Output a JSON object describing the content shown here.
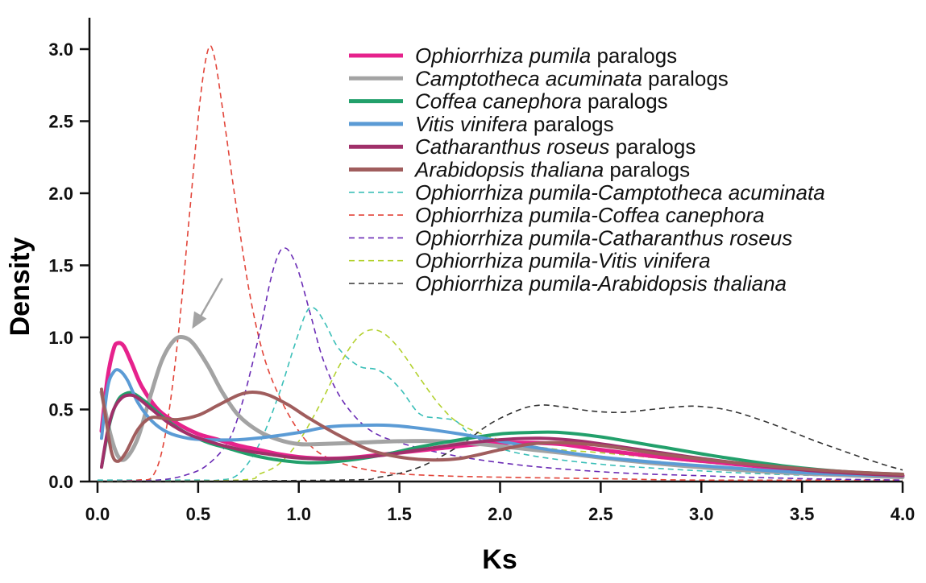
{
  "chart_data": {
    "type": "line",
    "xlabel": "Ks",
    "ylabel": "Density",
    "xlim": [
      0,
      4
    ],
    "ylim": [
      0,
      3.1
    ],
    "x_ticks": [
      "0.0",
      "0.5",
      "1.0",
      "1.5",
      "2.0",
      "2.5",
      "3.0",
      "3.5",
      "4.0"
    ],
    "y_ticks": [
      "0.0",
      "0.5",
      "1.0",
      "1.5",
      "2.0",
      "2.5",
      "3.0"
    ],
    "legend_position": "top-right",
    "annotation": {
      "type": "arrow",
      "from": [
        0.62,
        1.41
      ],
      "to": [
        0.47,
        1.06
      ]
    },
    "series": [
      {
        "name_italic": "Ophiorrhiza pumila",
        "name_suffix": " paralogs",
        "style": "solid",
        "width": 5,
        "color": "#e6228c",
        "points": [
          [
            0.02,
            0.35
          ],
          [
            0.05,
            0.72
          ],
          [
            0.08,
            0.92
          ],
          [
            0.1,
            0.96
          ],
          [
            0.13,
            0.94
          ],
          [
            0.17,
            0.82
          ],
          [
            0.22,
            0.66
          ],
          [
            0.3,
            0.5
          ],
          [
            0.4,
            0.4
          ],
          [
            0.5,
            0.33
          ],
          [
            0.6,
            0.29
          ],
          [
            0.7,
            0.25
          ],
          [
            0.8,
            0.22
          ],
          [
            0.9,
            0.19
          ],
          [
            1.0,
            0.17
          ],
          [
            1.1,
            0.16
          ],
          [
            1.2,
            0.16
          ],
          [
            1.3,
            0.17
          ],
          [
            1.5,
            0.2
          ],
          [
            1.7,
            0.23
          ],
          [
            1.9,
            0.26
          ],
          [
            2.1,
            0.27
          ],
          [
            2.3,
            0.26
          ],
          [
            2.5,
            0.22
          ],
          [
            2.8,
            0.17
          ],
          [
            3.1,
            0.13
          ],
          [
            3.4,
            0.09
          ],
          [
            3.7,
            0.06
          ],
          [
            4.0,
            0.04
          ]
        ]
      },
      {
        "name_italic": "Camptotheca acuminata",
        "name_suffix": " paralogs",
        "style": "solid",
        "width": 5,
        "color": "#a3a3a3",
        "points": [
          [
            0.02,
            0.62
          ],
          [
            0.06,
            0.35
          ],
          [
            0.1,
            0.18
          ],
          [
            0.14,
            0.16
          ],
          [
            0.2,
            0.3
          ],
          [
            0.26,
            0.58
          ],
          [
            0.32,
            0.84
          ],
          [
            0.38,
            0.98
          ],
          [
            0.43,
            1.0
          ],
          [
            0.48,
            0.95
          ],
          [
            0.55,
            0.8
          ],
          [
            0.62,
            0.62
          ],
          [
            0.7,
            0.46
          ],
          [
            0.8,
            0.35
          ],
          [
            0.9,
            0.29
          ],
          [
            1.0,
            0.26
          ],
          [
            1.1,
            0.26
          ],
          [
            1.3,
            0.27
          ],
          [
            1.5,
            0.28
          ],
          [
            1.7,
            0.28
          ],
          [
            1.9,
            0.26
          ],
          [
            2.1,
            0.23
          ],
          [
            2.3,
            0.2
          ],
          [
            2.6,
            0.15
          ],
          [
            2.9,
            0.11
          ],
          [
            3.2,
            0.08
          ],
          [
            3.6,
            0.05
          ],
          [
            4.0,
            0.03
          ]
        ]
      },
      {
        "name_italic": "Coffea canephora",
        "name_suffix": " paralogs",
        "style": "solid",
        "width": 4,
        "color": "#22a06b",
        "points": [
          [
            0.02,
            0.1
          ],
          [
            0.06,
            0.4
          ],
          [
            0.1,
            0.56
          ],
          [
            0.14,
            0.61
          ],
          [
            0.18,
            0.61
          ],
          [
            0.25,
            0.54
          ],
          [
            0.35,
            0.42
          ],
          [
            0.45,
            0.33
          ],
          [
            0.55,
            0.27
          ],
          [
            0.65,
            0.23
          ],
          [
            0.75,
            0.19
          ],
          [
            0.85,
            0.16
          ],
          [
            0.95,
            0.14
          ],
          [
            1.05,
            0.13
          ],
          [
            1.2,
            0.14
          ],
          [
            1.4,
            0.18
          ],
          [
            1.6,
            0.24
          ],
          [
            1.8,
            0.29
          ],
          [
            2.0,
            0.33
          ],
          [
            2.15,
            0.34
          ],
          [
            2.3,
            0.34
          ],
          [
            2.5,
            0.31
          ],
          [
            2.8,
            0.24
          ],
          [
            3.1,
            0.17
          ],
          [
            3.4,
            0.11
          ],
          [
            3.7,
            0.07
          ],
          [
            4.0,
            0.05
          ]
        ]
      },
      {
        "name_italic": "Vitis vinifera",
        "name_suffix": " paralogs",
        "style": "solid",
        "width": 4,
        "color": "#5b9bd5",
        "points": [
          [
            0.02,
            0.3
          ],
          [
            0.05,
            0.65
          ],
          [
            0.08,
            0.76
          ],
          [
            0.11,
            0.77
          ],
          [
            0.15,
            0.7
          ],
          [
            0.2,
            0.55
          ],
          [
            0.27,
            0.42
          ],
          [
            0.35,
            0.34
          ],
          [
            0.45,
            0.3
          ],
          [
            0.55,
            0.29
          ],
          [
            0.7,
            0.29
          ],
          [
            0.85,
            0.31
          ],
          [
            1.0,
            0.34
          ],
          [
            1.15,
            0.38
          ],
          [
            1.3,
            0.39
          ],
          [
            1.45,
            0.39
          ],
          [
            1.6,
            0.37
          ],
          [
            1.8,
            0.33
          ],
          [
            2.0,
            0.28
          ],
          [
            2.2,
            0.23
          ],
          [
            2.5,
            0.17
          ],
          [
            2.8,
            0.13
          ],
          [
            3.1,
            0.1
          ],
          [
            3.4,
            0.07
          ],
          [
            3.7,
            0.05
          ],
          [
            4.0,
            0.04
          ]
        ]
      },
      {
        "name_italic": "Catharanthus roseus",
        "name_suffix": " paralogs",
        "style": "solid",
        "width": 4,
        "color": "#a0306a",
        "points": [
          [
            0.02,
            0.1
          ],
          [
            0.05,
            0.35
          ],
          [
            0.08,
            0.5
          ],
          [
            0.12,
            0.58
          ],
          [
            0.16,
            0.6
          ],
          [
            0.2,
            0.58
          ],
          [
            0.27,
            0.5
          ],
          [
            0.35,
            0.41
          ],
          [
            0.45,
            0.33
          ],
          [
            0.55,
            0.28
          ],
          [
            0.65,
            0.24
          ],
          [
            0.75,
            0.21
          ],
          [
            0.85,
            0.19
          ],
          [
            0.95,
            0.17
          ],
          [
            1.05,
            0.16
          ],
          [
            1.2,
            0.16
          ],
          [
            1.4,
            0.18
          ],
          [
            1.6,
            0.22
          ],
          [
            1.8,
            0.26
          ],
          [
            2.0,
            0.29
          ],
          [
            2.2,
            0.3
          ],
          [
            2.4,
            0.28
          ],
          [
            2.7,
            0.22
          ],
          [
            3.0,
            0.16
          ],
          [
            3.3,
            0.11
          ],
          [
            3.6,
            0.07
          ],
          [
            4.0,
            0.04
          ]
        ]
      },
      {
        "name_italic": "Arabidopsis thaliana",
        "name_suffix": " paralogs",
        "style": "solid",
        "width": 4,
        "color": "#a05d5d",
        "points": [
          [
            0.02,
            0.64
          ],
          [
            0.04,
            0.45
          ],
          [
            0.07,
            0.2
          ],
          [
            0.1,
            0.14
          ],
          [
            0.14,
            0.2
          ],
          [
            0.2,
            0.36
          ],
          [
            0.26,
            0.44
          ],
          [
            0.32,
            0.44
          ],
          [
            0.4,
            0.43
          ],
          [
            0.5,
            0.46
          ],
          [
            0.6,
            0.53
          ],
          [
            0.7,
            0.6
          ],
          [
            0.77,
            0.62
          ],
          [
            0.85,
            0.6
          ],
          [
            0.95,
            0.53
          ],
          [
            1.05,
            0.44
          ],
          [
            1.2,
            0.32
          ],
          [
            1.35,
            0.22
          ],
          [
            1.5,
            0.17
          ],
          [
            1.65,
            0.15
          ],
          [
            1.8,
            0.16
          ],
          [
            2.0,
            0.22
          ],
          [
            2.15,
            0.26
          ],
          [
            2.3,
            0.27
          ],
          [
            2.5,
            0.25
          ],
          [
            2.8,
            0.19
          ],
          [
            3.1,
            0.14
          ],
          [
            3.4,
            0.1
          ],
          [
            3.7,
            0.07
          ],
          [
            4.0,
            0.05
          ]
        ]
      },
      {
        "name_italic": "Ophiorrhiza pumila-Camptotheca acuminata",
        "name_suffix": "",
        "style": "dashed",
        "width": 1.6,
        "color": "#3bbfb8",
        "points": [
          [
            0.0,
            0.01
          ],
          [
            0.5,
            0.01
          ],
          [
            0.6,
            0.01
          ],
          [
            0.7,
            0.05
          ],
          [
            0.8,
            0.25
          ],
          [
            0.9,
            0.6
          ],
          [
            0.98,
            0.95
          ],
          [
            1.04,
            1.18
          ],
          [
            1.08,
            1.2
          ],
          [
            1.13,
            1.1
          ],
          [
            1.2,
            0.92
          ],
          [
            1.3,
            0.8
          ],
          [
            1.4,
            0.77
          ],
          [
            1.5,
            0.65
          ],
          [
            1.6,
            0.47
          ],
          [
            1.7,
            0.44
          ],
          [
            1.78,
            0.42
          ],
          [
            1.85,
            0.33
          ],
          [
            2.0,
            0.23
          ],
          [
            2.2,
            0.17
          ],
          [
            2.5,
            0.12
          ],
          [
            2.8,
            0.09
          ],
          [
            3.2,
            0.06
          ],
          [
            3.6,
            0.04
          ],
          [
            4.0,
            0.03
          ]
        ]
      },
      {
        "name_italic": "Ophiorrhiza pumila-Coffea canephora",
        "name_suffix": "",
        "style": "dashed",
        "width": 1.6,
        "color": "#e2453a",
        "points": [
          [
            0.0,
            0.0
          ],
          [
            0.2,
            0.01
          ],
          [
            0.28,
            0.05
          ],
          [
            0.34,
            0.35
          ],
          [
            0.4,
            1.0
          ],
          [
            0.46,
            1.9
          ],
          [
            0.51,
            2.65
          ],
          [
            0.55,
            3.0
          ],
          [
            0.58,
            2.95
          ],
          [
            0.62,
            2.6
          ],
          [
            0.68,
            2.0
          ],
          [
            0.75,
            1.35
          ],
          [
            0.82,
            0.9
          ],
          [
            0.9,
            0.6
          ],
          [
            1.0,
            0.35
          ],
          [
            1.1,
            0.2
          ],
          [
            1.25,
            0.11
          ],
          [
            1.45,
            0.06
          ],
          [
            1.7,
            0.04
          ],
          [
            2.0,
            0.03
          ],
          [
            2.5,
            0.02
          ],
          [
            3.0,
            0.01
          ],
          [
            4.0,
            0.01
          ]
        ]
      },
      {
        "name_italic": "Ophiorrhiza pumila-Catharanthus roseus",
        "name_suffix": "",
        "style": "dashed",
        "width": 1.6,
        "color": "#6a2bb5",
        "points": [
          [
            0.0,
            0.0
          ],
          [
            0.3,
            0.01
          ],
          [
            0.45,
            0.05
          ],
          [
            0.55,
            0.12
          ],
          [
            0.65,
            0.28
          ],
          [
            0.72,
            0.55
          ],
          [
            0.8,
            1.0
          ],
          [
            0.86,
            1.4
          ],
          [
            0.9,
            1.58
          ],
          [
            0.93,
            1.62
          ],
          [
            0.96,
            1.58
          ],
          [
            1.0,
            1.45
          ],
          [
            1.06,
            1.15
          ],
          [
            1.12,
            0.85
          ],
          [
            1.2,
            0.6
          ],
          [
            1.3,
            0.42
          ],
          [
            1.4,
            0.32
          ],
          [
            1.55,
            0.25
          ],
          [
            1.7,
            0.2
          ],
          [
            1.9,
            0.15
          ],
          [
            2.2,
            0.1
          ],
          [
            2.6,
            0.06
          ],
          [
            3.0,
            0.04
          ],
          [
            3.5,
            0.02
          ],
          [
            4.0,
            0.01
          ]
        ]
      },
      {
        "name_italic": "Ophiorrhiza pumila-Vitis vinifera",
        "name_suffix": "",
        "style": "dashed",
        "width": 1.6,
        "color": "#b3d12f",
        "points": [
          [
            0.0,
            0.0
          ],
          [
            0.7,
            0.01
          ],
          [
            0.8,
            0.05
          ],
          [
            0.9,
            0.12
          ],
          [
            1.0,
            0.28
          ],
          [
            1.1,
            0.52
          ],
          [
            1.2,
            0.8
          ],
          [
            1.28,
            0.98
          ],
          [
            1.35,
            1.05
          ],
          [
            1.42,
            1.03
          ],
          [
            1.5,
            0.92
          ],
          [
            1.6,
            0.72
          ],
          [
            1.7,
            0.53
          ],
          [
            1.8,
            0.4
          ],
          [
            1.95,
            0.31
          ],
          [
            2.1,
            0.26
          ],
          [
            2.3,
            0.22
          ],
          [
            2.5,
            0.2
          ],
          [
            2.8,
            0.16
          ],
          [
            3.1,
            0.12
          ],
          [
            3.4,
            0.09
          ],
          [
            3.7,
            0.06
          ],
          [
            4.0,
            0.04
          ]
        ]
      },
      {
        "name_italic": "Ophiorrhiza pumila-Arabidopsis thaliana",
        "name_suffix": "",
        "style": "dashed",
        "width": 1.6,
        "color": "#333333",
        "points": [
          [
            0.0,
            0.0
          ],
          [
            1.2,
            0.01
          ],
          [
            1.4,
            0.03
          ],
          [
            1.6,
            0.1
          ],
          [
            1.8,
            0.25
          ],
          [
            1.95,
            0.4
          ],
          [
            2.1,
            0.5
          ],
          [
            2.2,
            0.53
          ],
          [
            2.3,
            0.52
          ],
          [
            2.45,
            0.49
          ],
          [
            2.6,
            0.48
          ],
          [
            2.75,
            0.5
          ],
          [
            2.9,
            0.52
          ],
          [
            3.0,
            0.52
          ],
          [
            3.15,
            0.49
          ],
          [
            3.35,
            0.4
          ],
          [
            3.55,
            0.29
          ],
          [
            3.75,
            0.19
          ],
          [
            3.9,
            0.12
          ],
          [
            4.0,
            0.08
          ]
        ]
      }
    ]
  }
}
